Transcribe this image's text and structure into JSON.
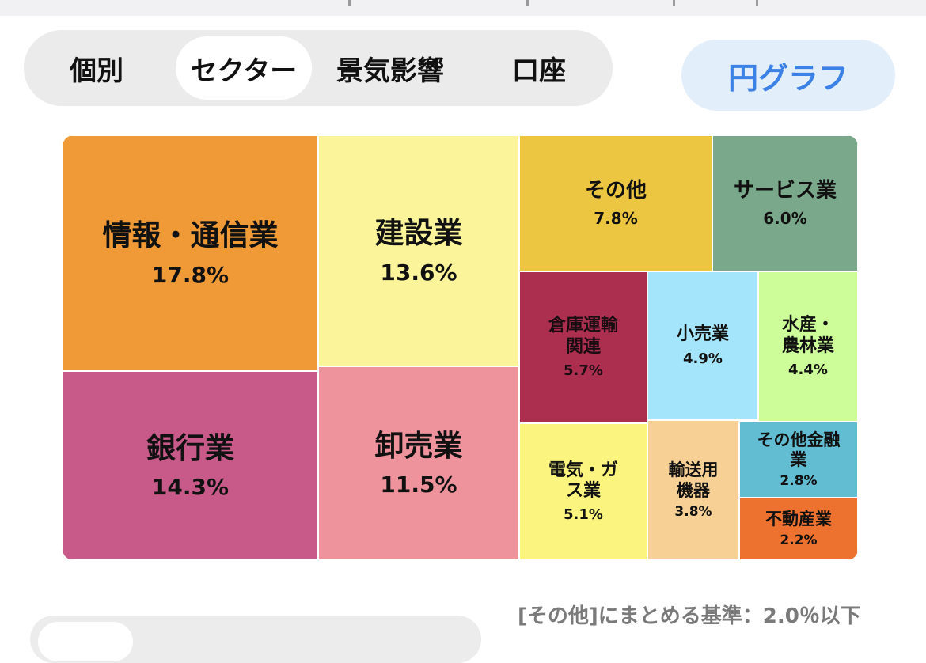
{
  "tabs": [
    {
      "label": "個別",
      "active": false
    },
    {
      "label": "セクター",
      "active": true
    },
    {
      "label": "景気影響",
      "active": false
    },
    {
      "label": "口座",
      "active": false
    }
  ],
  "pie_button": "円グラフ",
  "criteria_note": "[その他]にまとめる基準：2.0％以下",
  "chart_data": {
    "type": "treemap",
    "items": [
      {
        "name": "情報・通信業",
        "value": 17.8,
        "label": "17.8%",
        "color": "#f09a37"
      },
      {
        "name": "建設業",
        "value": 13.6,
        "label": "13.6%",
        "color": "#fbf49a"
      },
      {
        "name": "その他",
        "value": 7.8,
        "label": "7.8%",
        "color": "#ecc640"
      },
      {
        "name": "サービス業",
        "value": 6.0,
        "label": "6.0%",
        "color": "#7aa88a"
      },
      {
        "name": "銀行業",
        "value": 14.3,
        "label": "14.3%",
        "color": "#c85a8a"
      },
      {
        "name": "卸売業",
        "value": 11.5,
        "label": "11.5%",
        "color": "#ee939c"
      },
      {
        "name": "倉庫運輸関連",
        "value": 5.7,
        "label": "5.7%",
        "color": "#ad2f4f"
      },
      {
        "name": "小売業",
        "value": 4.9,
        "label": "4.9%",
        "color": "#a5e5fb"
      },
      {
        "name": "水産・農林業",
        "value": 4.4,
        "label": "4.4%",
        "color": "#ccfd98"
      },
      {
        "name": "電気・ガス業",
        "value": 5.1,
        "label": "5.1%",
        "color": "#fbf580"
      },
      {
        "name": "輸送用機器",
        "value": 3.8,
        "label": "3.8%",
        "color": "#f7d096"
      },
      {
        "name": "その他金融業",
        "value": 2.8,
        "label": "2.8%",
        "color": "#63bdd2"
      },
      {
        "name": "不動産業",
        "value": 2.2,
        "label": "2.2%",
        "color": "#ee722f"
      }
    ]
  }
}
